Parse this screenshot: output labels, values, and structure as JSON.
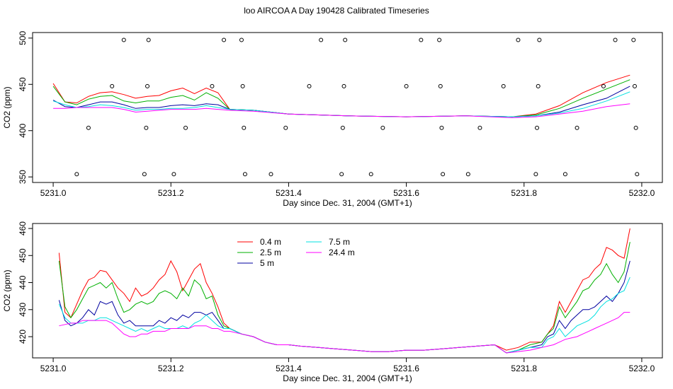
{
  "page": {
    "title": "loo AIRCOA A  Day 190428  Calibrated Timeseries"
  },
  "colors": {
    "0.4 m": "#ff0000",
    "2.5 m": "#00b000",
    "5 m": "#0000a0",
    "7.5 m": "#00e0e0",
    "24.4 m": "#ff00ff"
  },
  "chart_data": [
    {
      "type": "line",
      "title": "loo AIRCOA A  Day 190428  Calibrated Timeseries",
      "xlabel": "Day since Dec. 31, 2004 (GMT+1)",
      "ylabel": "CO2 (ppm)",
      "xlim": [
        5231.0,
        5232.0
      ],
      "ylim": [
        350,
        500
      ],
      "xticks": [
        "5231.0",
        "5231.2",
        "5231.4",
        "5231.6",
        "5231.8",
        "5232.0"
      ],
      "yticks": [
        "350",
        "400",
        "450",
        "500"
      ],
      "grid": false,
      "legend": "none",
      "x": [
        5231.0,
        5231.02,
        5231.04,
        5231.06,
        5231.08,
        5231.1,
        5231.12,
        5231.14,
        5231.16,
        5231.18,
        5231.2,
        5231.22,
        5231.24,
        5231.26,
        5231.28,
        5231.3,
        5231.34,
        5231.4,
        5231.5,
        5231.6,
        5231.7,
        5231.78,
        5231.82,
        5231.86,
        5231.9,
        5231.94,
        5231.98
      ],
      "series": [
        {
          "name": "0.4 m",
          "values": [
            451,
            431,
            430,
            437,
            441,
            442,
            439,
            435,
            437,
            438,
            443,
            446,
            440,
            446,
            441,
            423,
            422,
            418,
            416,
            415,
            416,
            415,
            418,
            427,
            441,
            452,
            460
          ]
        },
        {
          "name": "2.5 m",
          "values": [
            448,
            431,
            428,
            434,
            437,
            438,
            432,
            430,
            432,
            432,
            436,
            438,
            433,
            441,
            435,
            423,
            422,
            418,
            416,
            415,
            416,
            415,
            417,
            424,
            435,
            445,
            455
          ]
        },
        {
          "name": "5 m",
          "values": [
            433,
            426,
            425,
            428,
            431,
            431,
            428,
            424,
            425,
            425,
            427,
            428,
            427,
            429,
            428,
            423,
            422,
            418,
            416,
            415,
            416,
            415,
            416,
            420,
            428,
            435,
            448
          ]
        },
        {
          "name": "7.5 m",
          "values": [
            432,
            428,
            425,
            426,
            428,
            427,
            425,
            422,
            423,
            423,
            424,
            424,
            425,
            427,
            425,
            423,
            422,
            418,
            416,
            415,
            416,
            415,
            416,
            419,
            424,
            432,
            442
          ]
        },
        {
          "name": "24.4 m",
          "values": [
            424,
            424,
            425,
            425,
            425,
            425,
            423,
            420,
            421,
            422,
            423,
            423,
            423,
            424,
            423,
            422,
            421,
            418,
            416,
            415,
            416,
            414,
            415,
            418,
            421,
            426,
            429
          ]
        }
      ],
      "points": [
        {
          "x": 5231.04,
          "y": 353
        },
        {
          "x": 5231.06,
          "y": 403
        },
        {
          "x": 5231.1,
          "y": 448
        },
        {
          "x": 5231.12,
          "y": 498
        },
        {
          "x": 5231.155,
          "y": 353
        },
        {
          "x": 5231.158,
          "y": 403
        },
        {
          "x": 5231.16,
          "y": 448
        },
        {
          "x": 5231.162,
          "y": 498
        },
        {
          "x": 5231.205,
          "y": 353
        },
        {
          "x": 5231.225,
          "y": 403
        },
        {
          "x": 5231.27,
          "y": 448
        },
        {
          "x": 5231.29,
          "y": 498
        },
        {
          "x": 5231.32,
          "y": 498
        },
        {
          "x": 5231.322,
          "y": 448
        },
        {
          "x": 5231.324,
          "y": 403
        },
        {
          "x": 5231.326,
          "y": 353
        },
        {
          "x": 5231.37,
          "y": 353
        },
        {
          "x": 5231.395,
          "y": 403
        },
        {
          "x": 5231.435,
          "y": 448
        },
        {
          "x": 5231.455,
          "y": 498
        },
        {
          "x": 5231.49,
          "y": 353
        },
        {
          "x": 5231.492,
          "y": 403
        },
        {
          "x": 5231.494,
          "y": 448
        },
        {
          "x": 5231.496,
          "y": 498
        },
        {
          "x": 5231.54,
          "y": 353
        },
        {
          "x": 5231.56,
          "y": 403
        },
        {
          "x": 5231.6,
          "y": 448
        },
        {
          "x": 5231.625,
          "y": 498
        },
        {
          "x": 5231.656,
          "y": 498
        },
        {
          "x": 5231.658,
          "y": 448
        },
        {
          "x": 5231.66,
          "y": 403
        },
        {
          "x": 5231.662,
          "y": 353
        },
        {
          "x": 5231.705,
          "y": 353
        },
        {
          "x": 5231.725,
          "y": 403
        },
        {
          "x": 5231.765,
          "y": 448
        },
        {
          "x": 5231.79,
          "y": 498
        },
        {
          "x": 5231.82,
          "y": 353
        },
        {
          "x": 5231.822,
          "y": 403
        },
        {
          "x": 5231.824,
          "y": 448
        },
        {
          "x": 5231.826,
          "y": 498
        },
        {
          "x": 5231.87,
          "y": 353
        },
        {
          "x": 5231.89,
          "y": 403
        },
        {
          "x": 5231.935,
          "y": 448
        },
        {
          "x": 5231.955,
          "y": 498
        },
        {
          "x": 5231.986,
          "y": 498
        },
        {
          "x": 5231.988,
          "y": 448
        },
        {
          "x": 5231.99,
          "y": 403
        },
        {
          "x": 5231.992,
          "y": 353
        }
      ]
    },
    {
      "type": "line",
      "title": "",
      "xlabel": "Day since Dec. 31, 2004 (GMT+1)",
      "ylabel": "CO2 (ppm)",
      "xlim": [
        5231.0,
        5232.0
      ],
      "ylim": [
        414,
        460
      ],
      "xticks": [
        "5231.0",
        "5231.2",
        "5231.4",
        "5231.6",
        "5231.8",
        "5232.0"
      ],
      "yticks": [
        "420",
        "430",
        "440",
        "450",
        "460"
      ],
      "grid": false,
      "legend": "top-left",
      "x": [
        5231.01,
        5231.02,
        5231.03,
        5231.04,
        5231.05,
        5231.06,
        5231.07,
        5231.08,
        5231.09,
        5231.1,
        5231.11,
        5231.12,
        5231.13,
        5231.14,
        5231.15,
        5231.16,
        5231.17,
        5231.18,
        5231.19,
        5231.2,
        5231.21,
        5231.22,
        5231.23,
        5231.24,
        5231.25,
        5231.26,
        5231.27,
        5231.28,
        5231.29,
        5231.3,
        5231.32,
        5231.34,
        5231.36,
        5231.38,
        5231.4,
        5231.42,
        5231.45,
        5231.48,
        5231.51,
        5231.54,
        5231.57,
        5231.6,
        5231.63,
        5231.66,
        5231.69,
        5231.72,
        5231.75,
        5231.77,
        5231.79,
        5231.81,
        5231.83,
        5231.84,
        5231.85,
        5231.86,
        5231.87,
        5231.88,
        5231.89,
        5231.9,
        5231.91,
        5231.92,
        5231.93,
        5231.94,
        5231.95,
        5231.96,
        5231.97,
        5231.98
      ],
      "series": [
        {
          "name": "0.4 m",
          "values": [
            451,
            429,
            427,
            432,
            437,
            441,
            442,
            444.5,
            444,
            441,
            438,
            436,
            433,
            438,
            435,
            436,
            438,
            441,
            443,
            448,
            444,
            437,
            441,
            445,
            447,
            440,
            436,
            431,
            425,
            423,
            421,
            420,
            418,
            417,
            417,
            416.5,
            416,
            415.5,
            415,
            414.5,
            414.5,
            415,
            415,
            415.5,
            416,
            416.5,
            417,
            415,
            416,
            418,
            418,
            421,
            424,
            433,
            429,
            433,
            437,
            441,
            442,
            445,
            447,
            453,
            452,
            450,
            449,
            460
          ]
        },
        {
          "name": "2.5 m",
          "values": [
            448,
            431,
            427,
            430,
            434,
            438,
            439,
            440,
            438,
            440,
            434,
            429,
            430,
            432,
            433,
            432,
            433,
            436,
            437,
            436,
            434,
            438,
            435,
            441,
            439,
            434,
            435,
            428,
            424,
            423,
            421,
            420,
            418,
            417,
            417,
            416.5,
            416,
            415.5,
            415,
            414.5,
            414.5,
            415,
            415,
            415.5,
            416,
            416.5,
            417,
            414,
            415,
            417,
            418,
            421,
            423,
            431,
            427,
            430,
            433,
            437,
            438,
            441,
            443,
            447,
            443,
            440,
            444,
            455
          ]
        },
        {
          "name": "5 m",
          "values": [
            433.5,
            426,
            424,
            425,
            427,
            430,
            428,
            433,
            432,
            433,
            428,
            425,
            426,
            424,
            424,
            424,
            424,
            426,
            425,
            427,
            426,
            428,
            427,
            429,
            429,
            428,
            429,
            426,
            423,
            423,
            421,
            420,
            418,
            417,
            417,
            416.5,
            416,
            415.5,
            415,
            414.5,
            414.5,
            415,
            415,
            415.5,
            416,
            416.5,
            417,
            414,
            415,
            416,
            417,
            420,
            421,
            426,
            423,
            426,
            428,
            430,
            430,
            431,
            433,
            435,
            433,
            436,
            440,
            448
          ]
        },
        {
          "name": "7.5 m",
          "values": [
            432,
            427,
            425,
            425,
            425,
            426,
            426,
            427,
            427,
            426,
            425,
            424,
            423,
            422,
            423,
            422,
            423,
            424,
            423,
            423,
            423,
            424,
            423,
            425,
            426,
            428,
            426,
            424,
            423,
            423,
            421,
            420,
            418,
            417,
            417,
            416.5,
            416,
            415.5,
            415,
            414.5,
            414.5,
            415,
            415,
            415.5,
            416,
            416.5,
            417,
            414,
            415,
            416,
            416,
            419,
            420,
            423,
            420,
            422,
            424,
            425,
            426,
            428,
            431,
            433,
            434,
            436,
            437,
            442
          ]
        },
        {
          "name": "24.4 m",
          "values": [
            424,
            424.5,
            425,
            425,
            426,
            426,
            426,
            426,
            426,
            425,
            423,
            421,
            420,
            420,
            421,
            421,
            422,
            422,
            422,
            423,
            423,
            423,
            423,
            424,
            424,
            424,
            423,
            423,
            422,
            422,
            421,
            420,
            418,
            417,
            417,
            416.5,
            416,
            415.5,
            415,
            414.5,
            414.5,
            415,
            415,
            415.5,
            416,
            416.5,
            417,
            414,
            414.5,
            415,
            416,
            416.5,
            417,
            418,
            419,
            419.5,
            420,
            421,
            422,
            423,
            424,
            425,
            426,
            427,
            429,
            429
          ]
        }
      ]
    }
  ]
}
